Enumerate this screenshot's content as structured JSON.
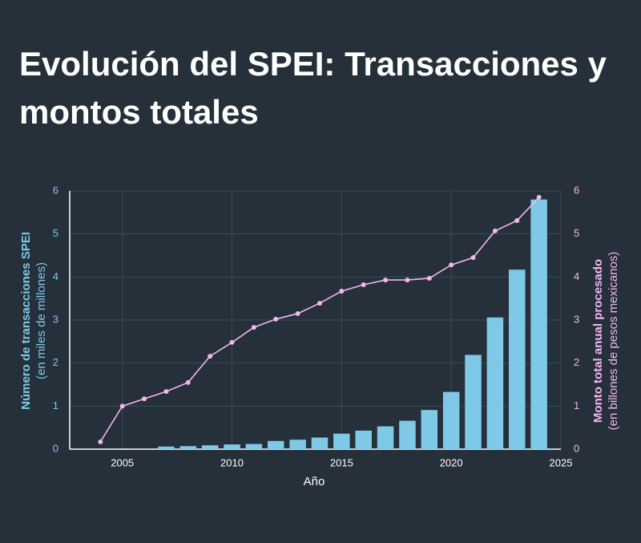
{
  "chart_data": {
    "type": "bar_line",
    "title": "Evolución del SPEI: Transacciones y montos totales",
    "xlabel": "Año",
    "ylabel": "Número de transacciones SPEI",
    "ylabel_note": "(en miles de millones)",
    "y2label": "Monto total anual procesado",
    "y2label_note": "(en billones de pesos mexicanos)",
    "x": [
      2004,
      2005,
      2006,
      2007,
      2008,
      2009,
      2010,
      2011,
      2012,
      2013,
      2014,
      2015,
      2016,
      2017,
      2018,
      2019,
      2020,
      2021,
      2022,
      2023,
      2024
    ],
    "series": [
      {
        "type": "bar",
        "axis": "y",
        "color": "#7ec8e8",
        "values": [
          null,
          null,
          null,
          0.06,
          0.07,
          0.09,
          0.11,
          0.12,
          0.19,
          0.22,
          0.27,
          0.36,
          0.43,
          0.53,
          0.66,
          0.91,
          1.33,
          2.19,
          3.06,
          4.17,
          5.8
        ]
      },
      {
        "type": "line",
        "axis": "y2",
        "color": "#f2b6ee",
        "values": [
          0.17,
          1.0,
          1.17,
          1.34,
          1.55,
          2.16,
          2.48,
          2.83,
          3.02,
          3.15,
          3.39,
          3.67,
          3.82,
          3.93,
          3.93,
          3.97,
          4.28,
          4.45,
          5.07,
          5.31,
          5.85
        ]
      }
    ],
    "xlim": [
      2002.6,
      2025
    ],
    "xticks": [
      2005,
      2010,
      2015,
      2020,
      2025
    ],
    "ylim": [
      0,
      6
    ],
    "yticks": [
      0,
      1,
      2,
      3,
      4,
      5,
      6
    ],
    "y2lim": [
      0,
      6
    ],
    "y2ticks": [
      0,
      1,
      2,
      3,
      4,
      5,
      6
    ],
    "grid": true
  }
}
